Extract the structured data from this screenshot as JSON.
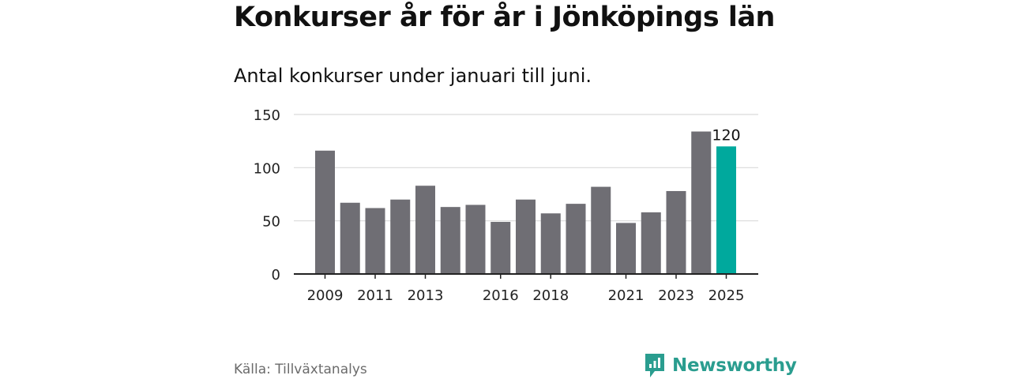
{
  "title": "Konkurser år för år i Jönköpings län",
  "subtitle": "Antal konkurser under januari till juni.",
  "source": "Källa: Tillväxtanalys",
  "brand": {
    "name": "Newsworthy",
    "icon": "newsworthy-logo-icon"
  },
  "colors": {
    "bar": "#6f6e74",
    "highlight": "#00a99d",
    "grid": "#d9d9d9",
    "axis": "#222222",
    "text": "#222222",
    "brand": "#2a9d8f"
  },
  "chart_data": {
    "type": "bar",
    "categories": [
      "2009",
      "2010",
      "2011",
      "2012",
      "2013",
      "2014",
      "2015",
      "2016",
      "2017",
      "2018",
      "2019",
      "2020",
      "2021",
      "2022",
      "2023",
      "2024",
      "2025"
    ],
    "values": [
      116,
      67,
      62,
      70,
      83,
      63,
      65,
      49,
      70,
      57,
      66,
      82,
      48,
      58,
      78,
      134,
      120
    ],
    "highlight_index": 16,
    "tick_labels": [
      "2009",
      "2011",
      "2013",
      "2016",
      "2018",
      "2021",
      "2023",
      "2025"
    ],
    "yticks": [
      0,
      50,
      100,
      150
    ],
    "ylim": [
      0,
      150
    ],
    "grid": true,
    "annotations": [
      {
        "category": "2025",
        "text": "120"
      }
    ],
    "xlabel": "",
    "ylabel": ""
  }
}
